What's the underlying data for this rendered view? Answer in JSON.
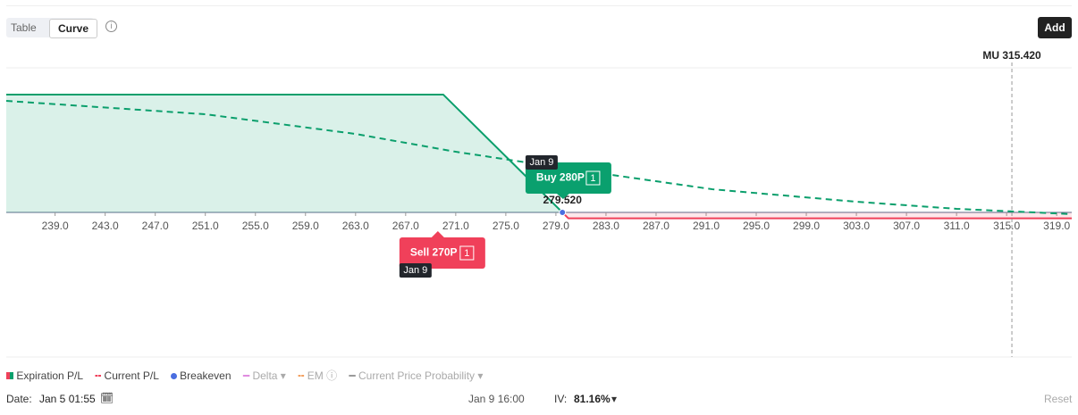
{
  "toolbar": {
    "tabs": [
      "Table",
      "Curve"
    ],
    "active_tab": "Curve",
    "add_button": "Add"
  },
  "chart_data": {
    "type": "line",
    "xlim": [
      235.1,
      320.2
    ],
    "ylim": [
      -1168,
      1168
    ],
    "xticks": [
      {
        "value": 239,
        "label": "239.0"
      },
      {
        "value": 243,
        "label": "243.0"
      },
      {
        "value": 247,
        "label": "247.0"
      },
      {
        "value": 251,
        "label": "251.0"
      },
      {
        "value": 255,
        "label": "255.0"
      },
      {
        "value": 259,
        "label": "259.0"
      },
      {
        "value": 263,
        "label": "263.0"
      },
      {
        "value": 267,
        "label": "267.0"
      },
      {
        "value": 271,
        "label": "271.0"
      },
      {
        "value": 275,
        "label": "275.0"
      },
      {
        "value": 279,
        "label": "279.0"
      },
      {
        "value": 283,
        "label": "283.0"
      },
      {
        "value": 287,
        "label": "287.0"
      },
      {
        "value": 291,
        "label": "291.0"
      },
      {
        "value": 295,
        "label": "295.0"
      },
      {
        "value": 299,
        "label": "299.0"
      },
      {
        "value": 303,
        "label": "303.0"
      },
      {
        "value": 307,
        "label": "307.0"
      },
      {
        "value": 311,
        "label": "311.0"
      },
      {
        "value": 315,
        "label": "315.0"
      },
      {
        "value": 319,
        "label": "319.0"
      }
    ],
    "series": [
      {
        "name": "Expiration P/L",
        "color": "#0a9f6c",
        "loss_color": "#f0405a",
        "x": [
          235.1,
          270,
          279.52,
          280,
          320.2
        ],
        "values": [
          952,
          952,
          0,
          -48,
          -48
        ]
      },
      {
        "name": "Current P/L",
        "color": "#0a9f6c",
        "x": [
          235.1,
          251,
          263,
          271,
          279.5,
          291.5,
          303,
          311,
          320.2
        ],
        "values": [
          901,
          793,
          634,
          490,
          360,
          187,
          86,
          29,
          -14
        ]
      }
    ],
    "breakeven": {
      "value": 279.52,
      "label": "279.520"
    },
    "current_price": {
      "value": 315.42,
      "label": "MU 315.420"
    },
    "legs": [
      {
        "label": "Buy 280P",
        "strike": 280,
        "qty": 1,
        "expiry": "Jan 9",
        "color": "#0aa06e"
      },
      {
        "label": "Sell 270P",
        "strike": 270,
        "qty": 1,
        "expiry": "Jan 9",
        "color": "#f0405a"
      }
    ]
  },
  "legend": [
    "Expiration P/L",
    "Current P/L",
    "Breakeven",
    "Delta",
    "EM",
    "Current Price Probability"
  ],
  "footer": {
    "date_label": "Date:",
    "date": "Jan 5 01:55",
    "expiry": "Jan 9 16:00",
    "iv_label": "IV:",
    "iv": "81.16%",
    "reset": "Reset"
  }
}
